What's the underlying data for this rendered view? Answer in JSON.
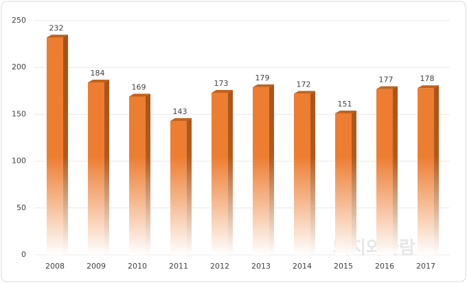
{
  "chart_data": {
    "type": "bar3d",
    "categories": [
      "2008",
      "2009",
      "2010",
      "2011",
      "2012",
      "2013",
      "2014",
      "2015",
      "2016",
      "2017"
    ],
    "values": [
      232,
      184,
      169,
      143,
      173,
      179,
      172,
      151,
      177,
      178
    ],
    "color": "#ed7d31",
    "ylim": [
      0,
      250
    ],
    "yticks": [
      0,
      50,
      100,
      150,
      200,
      250
    ],
    "grid": true,
    "watermark": "돼지와사람"
  }
}
